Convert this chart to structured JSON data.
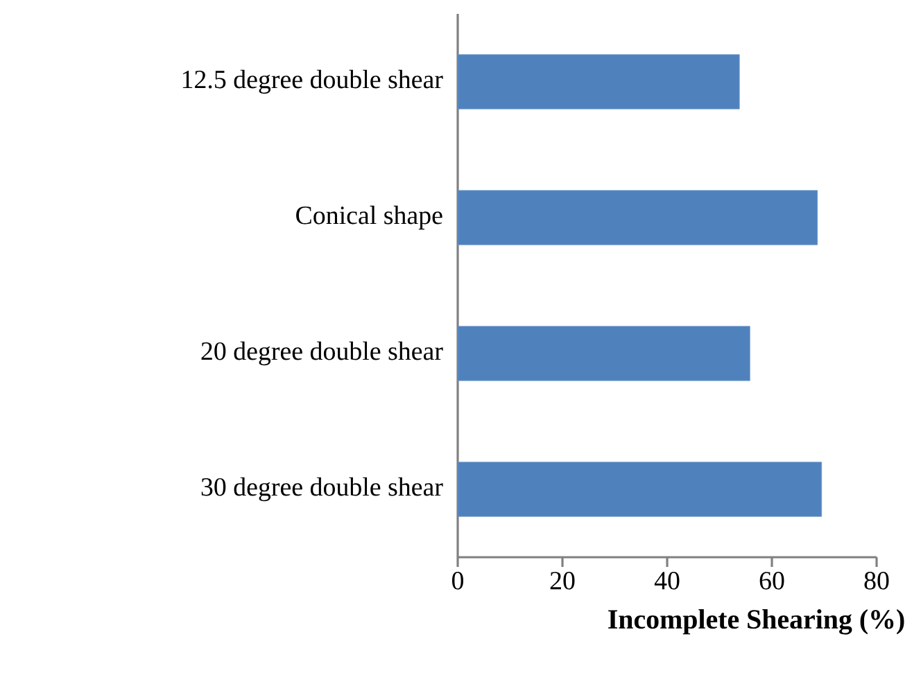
{
  "chart_data": {
    "type": "bar",
    "orientation": "horizontal",
    "categories": [
      "12.5 degree double shear",
      "Conical shape",
      "20 degree double shear",
      "30 degree double shear"
    ],
    "values": [
      53.8,
      68.7,
      55.8,
      69.5
    ],
    "color": "#4f81bd",
    "xlim": [
      0,
      80
    ],
    "xticks": [
      0,
      20,
      40,
      60,
      80
    ],
    "xlabel": "Incomplete Shearing (%)"
  }
}
